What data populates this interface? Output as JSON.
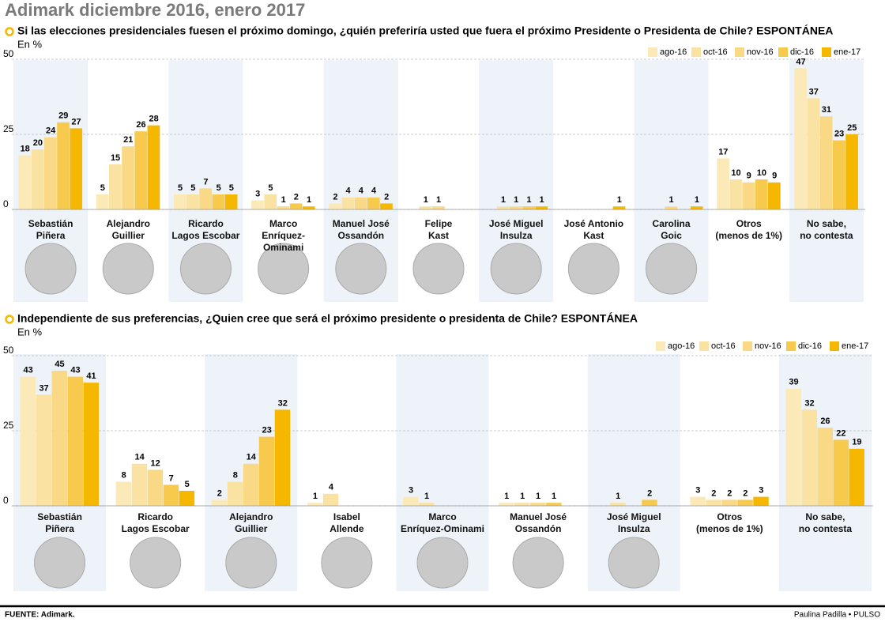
{
  "title": "Adimark diciembre 2016, enero 2017",
  "source": "FUENTE: Adimark.",
  "credit": "Paulina Padilla • PULSO",
  "chart_data": [
    {
      "type": "bar",
      "title": "Si las elecciones presidenciales fuesen el próximo domingo, ¿quién preferiría usted que fuera el próximo Presidente o Presidenta de Chile? ESPONTÁNEA",
      "subtitle": "En %",
      "categories": [
        "Sebastián\nPiñera",
        "Alejandro\nGuillier",
        "Ricardo\nLagos Escobar",
        "Marco\nEnríquez-Ominami",
        "Manuel José\nOssandón",
        "Felipe\nKast",
        "José Miguel\nInsulza",
        "José Antonio\nKast",
        "Carolina\nGoic",
        "Otros\n(menos de 1%)",
        "No sabe,\nno contesta"
      ],
      "series": [
        {
          "name": "ago-16",
          "color": "#fbe9b8",
          "values": [
            18,
            5,
            5,
            3,
            2,
            null,
            null,
            null,
            null,
            17,
            47
          ]
        },
        {
          "name": "oct-16",
          "color": "#fae2a2",
          "values": [
            20,
            15,
            5,
            5,
            4,
            1,
            1,
            null,
            null,
            10,
            37
          ]
        },
        {
          "name": "nov-16",
          "color": "#f9d985",
          "values": [
            24,
            21,
            7,
            1,
            4,
            1,
            1,
            null,
            1,
            9,
            31
          ]
        },
        {
          "name": "dic-16",
          "color": "#f7ca4d",
          "values": [
            29,
            26,
            5,
            2,
            4,
            null,
            1,
            null,
            null,
            10,
            23
          ]
        },
        {
          "name": "ene-17",
          "color": "#f5b700",
          "values": [
            27,
            28,
            5,
            1,
            2,
            null,
            1,
            1,
            1,
            9,
            25
          ]
        }
      ],
      "ylim": [
        0,
        50
      ],
      "yticks": [
        0,
        25,
        50
      ],
      "grid": true,
      "legend": "top-right"
    },
    {
      "type": "bar",
      "title": "Independiente de sus preferencias, ¿Quien cree que será el próximo presidente o presidenta de Chile? ESPONTÁNEA",
      "subtitle": "En %",
      "categories": [
        "Sebastián\nPiñera",
        "Ricardo\nLagos Escobar",
        "Alejandro\nGuillier",
        "Isabel\nAllende",
        "Marco\nEnríquez-Ominami",
        "Manuel José\nOssandón",
        "José Miguel\nInsulza",
        "Otros\n(menos de 1%)",
        "No sabe,\nno contesta"
      ],
      "series": [
        {
          "name": "ago-16",
          "color": "#fbe9b8",
          "values": [
            43,
            8,
            2,
            1,
            3,
            1,
            null,
            3,
            39
          ]
        },
        {
          "name": "oct-16",
          "color": "#fae2a2",
          "values": [
            37,
            14,
            8,
            4,
            1,
            1,
            1,
            2,
            32
          ]
        },
        {
          "name": "nov-16",
          "color": "#f9d985",
          "values": [
            45,
            12,
            14,
            null,
            null,
            1,
            null,
            2,
            26
          ]
        },
        {
          "name": "dic-16",
          "color": "#f7ca4d",
          "values": [
            43,
            7,
            23,
            null,
            null,
            1,
            2,
            2,
            22
          ]
        },
        {
          "name": "ene-17",
          "color": "#f5b700",
          "values": [
            41,
            5,
            32,
            null,
            null,
            null,
            null,
            3,
            19
          ]
        }
      ],
      "ylim": [
        0,
        50
      ],
      "yticks": [
        0,
        25,
        50
      ],
      "grid": true,
      "legend": "top-right"
    }
  ]
}
